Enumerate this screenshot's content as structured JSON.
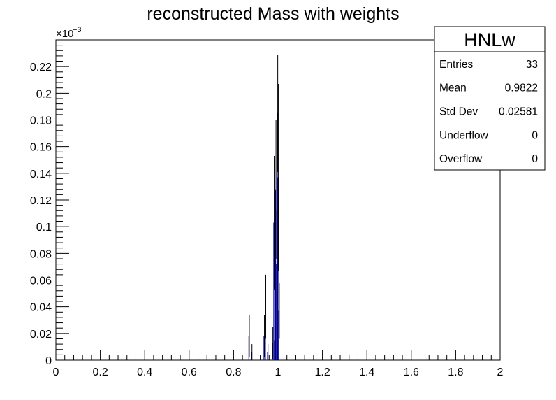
{
  "chart_data": {
    "type": "bar",
    "title": "reconstructed Mass with weights",
    "xlabel": "",
    "ylabel": "",
    "xlim": [
      0,
      2
    ],
    "ylim": [
      0,
      0.24
    ],
    "y_exponent_label": "×10",
    "y_exponent_power": "−3",
    "x_ticks": [
      "0",
      "0.2",
      "0.4",
      "0.6",
      "0.8",
      "1",
      "1.2",
      "1.4",
      "1.6",
      "1.8",
      "2"
    ],
    "y_ticks": [
      "0",
      "0.02",
      "0.04",
      "0.06",
      "0.08",
      "0.1",
      "0.12",
      "0.14",
      "0.16",
      "0.18",
      "0.2",
      "0.22"
    ],
    "series_color": "#000099",
    "bins": [
      {
        "x": 0.869,
        "y": 0.018,
        "err": 0.016
      },
      {
        "x": 0.881,
        "y": 0.006,
        "err": 0.006
      },
      {
        "x": 0.937,
        "y": 0.018,
        "err": 0.016
      },
      {
        "x": 0.943,
        "y": 0.04,
        "err": 0.024
      },
      {
        "x": 0.953,
        "y": 0.006,
        "err": 0.006
      },
      {
        "x": 0.975,
        "y": 0.013,
        "err": 0.012
      },
      {
        "x": 0.981,
        "y": 0.103,
        "err": 0.05
      },
      {
        "x": 0.985,
        "y": 0.015,
        "err": 0.008
      },
      {
        "x": 0.989,
        "y": 0.128,
        "err": 0.052
      },
      {
        "x": 0.993,
        "y": 0.072,
        "err": 0.04
      },
      {
        "x": 0.997,
        "y": 0.185,
        "err": 0.044
      },
      {
        "x": 1.0,
        "y": 0.137,
        "err": 0.07
      },
      {
        "x": 1.004,
        "y": 0.037,
        "err": 0.021
      }
    ]
  },
  "stats_box": {
    "title": "HNLw",
    "rows": [
      {
        "name": "Entries",
        "value": "33"
      },
      {
        "name": "Mean",
        "value": "0.9822"
      },
      {
        "name": "Std Dev",
        "value": "0.02581"
      },
      {
        "name": "Underflow",
        "value": "0"
      },
      {
        "name": "Overflow",
        "value": "0"
      }
    ]
  }
}
